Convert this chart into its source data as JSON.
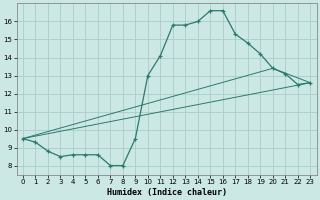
{
  "title": "",
  "xlabel": "Humidex (Indice chaleur)",
  "ylabel": "",
  "bg_color": "#cce8e4",
  "grid_color": "#aaccca",
  "line_color": "#2a7a6e",
  "xlim": [
    -0.5,
    23.5
  ],
  "ylim": [
    7.5,
    17.0
  ],
  "xticks": [
    0,
    1,
    2,
    3,
    4,
    5,
    6,
    7,
    8,
    9,
    10,
    11,
    12,
    13,
    14,
    15,
    16,
    17,
    18,
    19,
    20,
    21,
    22,
    23
  ],
  "yticks": [
    8,
    9,
    10,
    11,
    12,
    13,
    14,
    15,
    16
  ],
  "line1_x": [
    0,
    1,
    2,
    3,
    4,
    5,
    6,
    7,
    8,
    9,
    10,
    11,
    12,
    13,
    14,
    15,
    16,
    17,
    18,
    19,
    20,
    21,
    22,
    23
  ],
  "line1_y": [
    9.5,
    9.3,
    8.8,
    8.5,
    8.6,
    8.6,
    8.6,
    8.0,
    8.0,
    9.5,
    13.0,
    14.1,
    15.8,
    15.8,
    16.0,
    16.6,
    16.6,
    15.3,
    14.8,
    14.2,
    13.4,
    13.1,
    12.5,
    12.6
  ],
  "line2_x": [
    0,
    23
  ],
  "line2_y": [
    9.5,
    12.6
  ],
  "line3_x": [
    0,
    20,
    23
  ],
  "line3_y": [
    9.5,
    13.4,
    12.6
  ]
}
